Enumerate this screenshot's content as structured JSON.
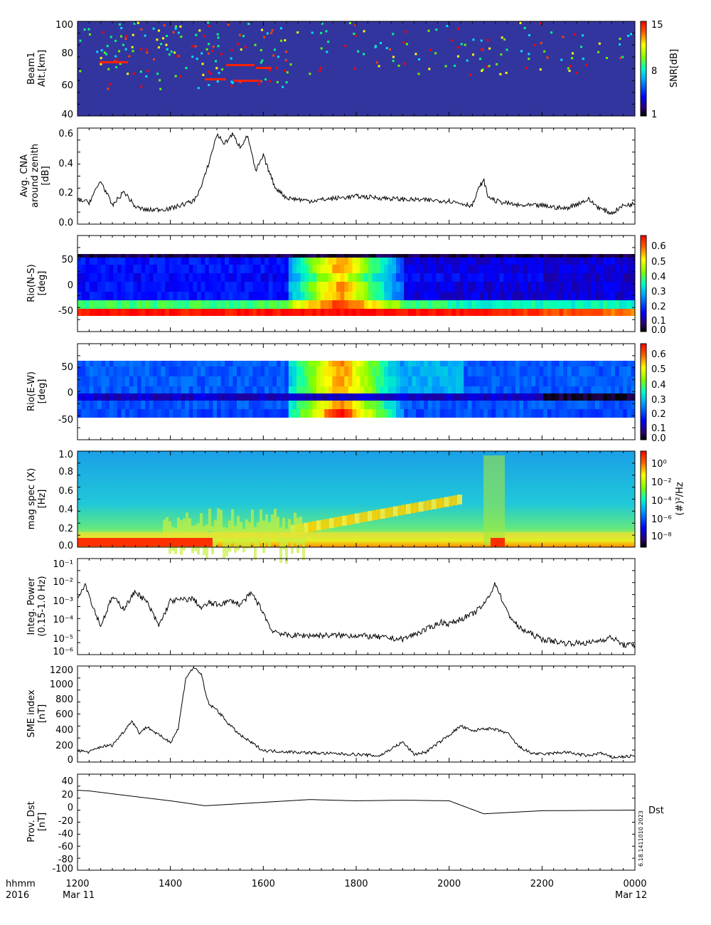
{
  "time_axis": {
    "ticks": [
      "1200",
      "1400",
      "1600",
      "1800",
      "2000",
      "2200",
      "0000"
    ],
    "row_label": "hhmm",
    "year_label": "2016",
    "start_date": "Mar 11",
    "end_date": "Mar 12"
  },
  "chart_data": [
    {
      "type": "heatmap",
      "ylabel": [
        "Beam1",
        "Alt.[km]"
      ],
      "yticks": [
        "100",
        "80",
        "60",
        "40"
      ],
      "colorbar": {
        "label": "SNR[dB]",
        "ticks": [
          "15",
          "8",
          "1"
        ]
      }
    },
    {
      "type": "line",
      "ylabel": [
        "Avg. CNA",
        "around zenith",
        "[dB]"
      ],
      "yticks": [
        "0.6",
        "0.4",
        "0.2",
        "0.0"
      ],
      "ylim": [
        0,
        0.62
      ],
      "x": [
        "1200",
        "1215",
        "1230",
        "1245",
        "1300",
        "1315",
        "1330",
        "1400",
        "1430",
        "1440",
        "1450",
        "1500",
        "1510",
        "1520",
        "1530",
        "1540",
        "1550",
        "1600",
        "1615",
        "1630",
        "1700",
        "1800",
        "1900",
        "2000",
        "2030",
        "2040",
        "2045",
        "2050",
        "2100",
        "2130",
        "2200",
        "2230",
        "2300",
        "2315",
        "2330",
        "2345",
        "0000"
      ],
      "values": [
        0.16,
        0.14,
        0.28,
        0.12,
        0.21,
        0.11,
        0.09,
        0.1,
        0.15,
        0.24,
        0.4,
        0.58,
        0.52,
        0.58,
        0.5,
        0.57,
        0.34,
        0.44,
        0.24,
        0.17,
        0.15,
        0.18,
        0.16,
        0.15,
        0.12,
        0.25,
        0.28,
        0.18,
        0.15,
        0.12,
        0.12,
        0.1,
        0.16,
        0.1,
        0.07,
        0.12,
        0.13
      ]
    },
    {
      "type": "heatmap",
      "ylabel": [
        "Rio(N-S)",
        "[deg]"
      ],
      "yticks": [
        "50",
        "0",
        "-50"
      ],
      "colorbar": {
        "ticks": [
          "0.6",
          "0.5",
          "0.4",
          "0.3",
          "0.2",
          "0.1",
          "0.0"
        ]
      }
    },
    {
      "type": "heatmap",
      "ylabel": [
        "Rio(E-W)",
        "[deg]"
      ],
      "yticks": [
        "50",
        "0",
        "-50"
      ],
      "colorbar": {
        "ticks": [
          "0.6",
          "0.5",
          "0.4",
          "0.3",
          "0.2",
          "0.1",
          "0.0"
        ]
      }
    },
    {
      "type": "heatmap",
      "ylabel": [
        "mag spec (X)",
        "[Hz]"
      ],
      "yticks": [
        "1.0",
        "0.8",
        "0.6",
        "0.4",
        "0.2",
        "0.0"
      ],
      "colorbar": {
        "label": "(#)²/Hz",
        "ticks": [
          "10⁰",
          "10⁻²",
          "10⁻⁴",
          "10⁻⁶",
          "10⁻⁸"
        ]
      }
    },
    {
      "type": "line",
      "ylabel": [
        "Integ. Power",
        "(0.15-1.0 Hz)"
      ],
      "yticks": [
        "10⁻¹",
        "10⁻²",
        "10⁻³",
        "10⁻⁴",
        "10⁻⁵",
        "10⁻⁶"
      ],
      "log": true,
      "ylim": [
        -6,
        -1
      ],
      "x": [
        "1200",
        "1210",
        "1220",
        "1230",
        "1245",
        "1300",
        "1315",
        "1330",
        "1345",
        "1400",
        "1430",
        "1440",
        "1450",
        "1500",
        "1520",
        "1530",
        "1545",
        "1600",
        "1610",
        "1630",
        "1700",
        "1800",
        "1900",
        "1930",
        "1950",
        "2000",
        "2030",
        "2045",
        "2100",
        "2115",
        "2130",
        "2200",
        "2230",
        "2300",
        "2330",
        "2345",
        "0000"
      ],
      "values": [
        -3.0,
        -2.3,
        -3.5,
        -4.5,
        -3.0,
        -3.6,
        -2.7,
        -3.3,
        -4.5,
        -3.2,
        -3.1,
        -3.6,
        -3.3,
        -3.4,
        -3.2,
        -3.4,
        -2.8,
        -3.8,
        -4.7,
        -5.0,
        -5.0,
        -5.0,
        -5.2,
        -4.7,
        -4.3,
        -4.4,
        -3.9,
        -3.4,
        -2.3,
        -3.8,
        -4.6,
        -5.2,
        -5.4,
        -5.4,
        -5.1,
        -5.5,
        -5.5
      ]
    },
    {
      "type": "line",
      "ylabel": [
        "SME index",
        "[nT]"
      ],
      "yticks": [
        "1200",
        "1000",
        "800",
        "600",
        "400",
        "200",
        "0"
      ],
      "ylim": [
        0,
        1250
      ],
      "x": [
        "1200",
        "1215",
        "1230",
        "1245",
        "1300",
        "1310",
        "1320",
        "1330",
        "1345",
        "1400",
        "1410",
        "1420",
        "1430",
        "1440",
        "1445",
        "1450",
        "1500",
        "1515",
        "1530",
        "1545",
        "1600",
        "1700",
        "1800",
        "1830",
        "1900",
        "1915",
        "1930",
        "2000",
        "2015",
        "2030",
        "2045",
        "2100",
        "2115",
        "2130",
        "2145",
        "2200",
        "2230",
        "2300",
        "2315",
        "2330",
        "0000"
      ],
      "values": [
        150,
        130,
        200,
        220,
        400,
        540,
        380,
        460,
        350,
        260,
        430,
        1100,
        1230,
        1150,
        900,
        750,
        680,
        500,
        350,
        250,
        150,
        120,
        100,
        80,
        260,
        100,
        130,
        350,
        470,
        400,
        440,
        420,
        380,
        200,
        120,
        100,
        130,
        80,
        120,
        60,
        80
      ]
    },
    {
      "type": "line",
      "ylabel": [
        "Prov. Dst",
        "[nT]"
      ],
      "yticks": [
        "40",
        "20",
        "0",
        "-20",
        "-40",
        "-60",
        "-80",
        "-100"
      ],
      "ylim": [
        -107,
        48
      ],
      "x": [
        "1200",
        "1215",
        "1300",
        "1400",
        "1445",
        "1700",
        "1800",
        "1900",
        "2000",
        "2045",
        "2200",
        "0000"
      ],
      "values": [
        22,
        21,
        14,
        5,
        -3,
        7,
        5,
        6,
        5,
        -16,
        -11,
        -10
      ],
      "series_label": "Dst"
    }
  ],
  "footer": {
    "sidebar_stamp": "6.18.1411010 2023"
  },
  "colors": {
    "line": "#000000",
    "background": "#ffffff",
    "heat_base": "#3333aa"
  }
}
